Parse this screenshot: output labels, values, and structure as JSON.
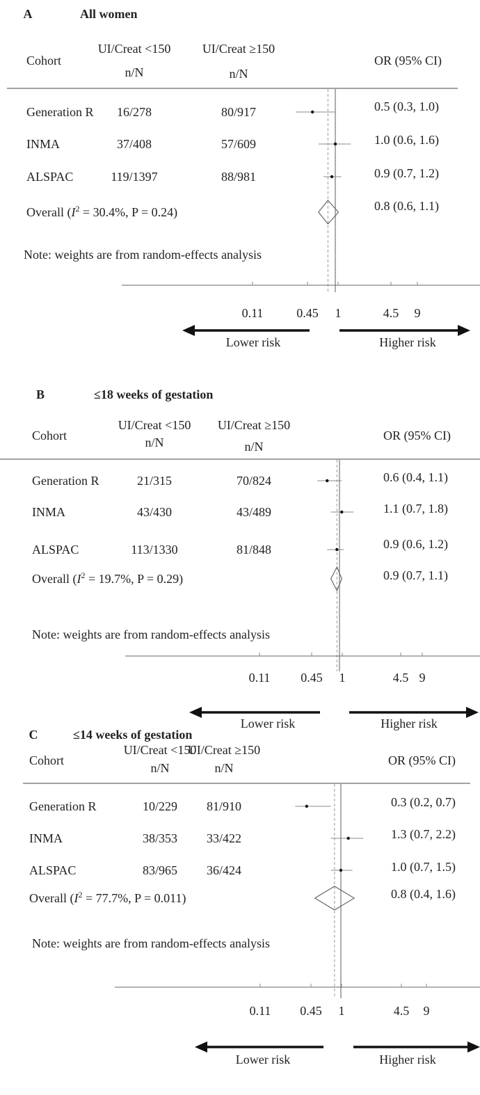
{
  "chart_data": [
    {
      "type": "forest",
      "panel_letter": "A",
      "title": "All women",
      "columns": {
        "cohort": "Cohort",
        "low": "UI/Creat <150",
        "high": "UI/Creat ≥150",
        "nN": "n/N",
        "or": "OR (95% CI)"
      },
      "x_ticks": [
        "0.11",
        "0.45",
        "1",
        "4.5",
        "9"
      ],
      "x_scale": "log",
      "lower_label": "Lower risk",
      "higher_label": "Higher risk",
      "note": "Note: weights are from random-effects analysis",
      "rows": [
        {
          "cohort": "Generation R",
          "low": "16/278",
          "high": "80/917",
          "or_text": "0.5 (0.3, 1.0)",
          "or": 0.5,
          "lo": 0.3,
          "hi": 1.0
        },
        {
          "cohort": "INMA",
          "low": "37/408",
          "high": "57/609",
          "or_text": "1.0 (0.6, 1.6)",
          "or": 1.0,
          "lo": 0.6,
          "hi": 1.6
        },
        {
          "cohort": "ALSPAC",
          "low": "119/1397",
          "high": "88/981",
          "or_text": "0.9 (0.7, 1.2)",
          "or": 0.9,
          "lo": 0.7,
          "hi": 1.2
        }
      ],
      "overall": {
        "prefix": "Overall (",
        "I": "I",
        "sup": "2",
        "stats": " = 30.4%,  P = 0.24)",
        "or_text": "0.8 (0.6, 1.1)",
        "or": 0.8,
        "lo": 0.6,
        "hi": 1.1
      }
    },
    {
      "type": "forest",
      "panel_letter": "B",
      "title": "≤18 weeks of gestation",
      "columns": {
        "cohort": "Cohort",
        "low": "UI/Creat <150",
        "high": "UI/Creat ≥150",
        "nN": "n/N",
        "or": "OR (95% CI)"
      },
      "x_ticks": [
        "0.11",
        "0.45",
        "1",
        "4.5",
        "9"
      ],
      "x_scale": "log",
      "lower_label": "Lower risk",
      "higher_label": "Higher risk",
      "note": "Note: weights are from random-effects analysis",
      "rows": [
        {
          "cohort": "Generation R",
          "low": "21/315",
          "high": "70/824",
          "or_text": "0.6 (0.4, 1.1)",
          "or": 0.6,
          "lo": 0.4,
          "hi": 1.1
        },
        {
          "cohort": "INMA",
          "low": "43/430",
          "high": "43/489",
          "or_text": "1.1 (0.7, 1.8)",
          "or": 1.1,
          "lo": 0.7,
          "hi": 1.8
        },
        {
          "cohort": "ALSPAC",
          "low": "113/1330",
          "high": "81/848",
          "or_text": "0.9 (0.6, 1.2)",
          "or": 0.9,
          "lo": 0.6,
          "hi": 1.2
        }
      ],
      "overall": {
        "prefix": "Overall (",
        "I": "I",
        "sup": "2",
        "stats": " = 19.7%,  P = 0.29)",
        "or_text": "0.9 (0.7, 1.1)",
        "or": 0.9,
        "lo": 0.7,
        "hi": 1.1
      }
    },
    {
      "type": "forest",
      "panel_letter": "C",
      "title": "≤14 weeks of gestation",
      "columns": {
        "cohort": "Cohort",
        "low": "UI/Creat <150",
        "high": "UI/Creat ≥150",
        "nN": "n/N",
        "or": "OR (95% CI)"
      },
      "x_ticks": [
        "0.11",
        "0.45",
        "1",
        "4.5",
        "9"
      ],
      "x_scale": "log",
      "lower_label": "Lower risk",
      "higher_label": "Higher risk",
      "note": "Note: weights are from random-effects analysis",
      "rows": [
        {
          "cohort": "Generation R",
          "low": "10/229",
          "high": "81/910",
          "or_text": "0.3 (0.2, 0.7)",
          "or": 0.3,
          "lo": 0.2,
          "hi": 0.7
        },
        {
          "cohort": "INMA",
          "low": "38/353",
          "high": "33/422",
          "or_text": "1.3 (0.7, 2.2)",
          "or": 1.3,
          "lo": 0.7,
          "hi": 2.2
        },
        {
          "cohort": "ALSPAC",
          "low": "83/965",
          "high": "36/424",
          "or_text": "1.0 (0.7, 1.5)",
          "or": 1.0,
          "lo": 0.7,
          "hi": 1.5
        }
      ],
      "overall": {
        "prefix": "Overall (",
        "I": "I",
        "sup": "2",
        "stats": " = 77.7%,  P = 0.011)",
        "or_text": "0.8 (0.4, 1.6)",
        "or": 0.8,
        "lo": 0.4,
        "hi": 1.6
      }
    }
  ]
}
